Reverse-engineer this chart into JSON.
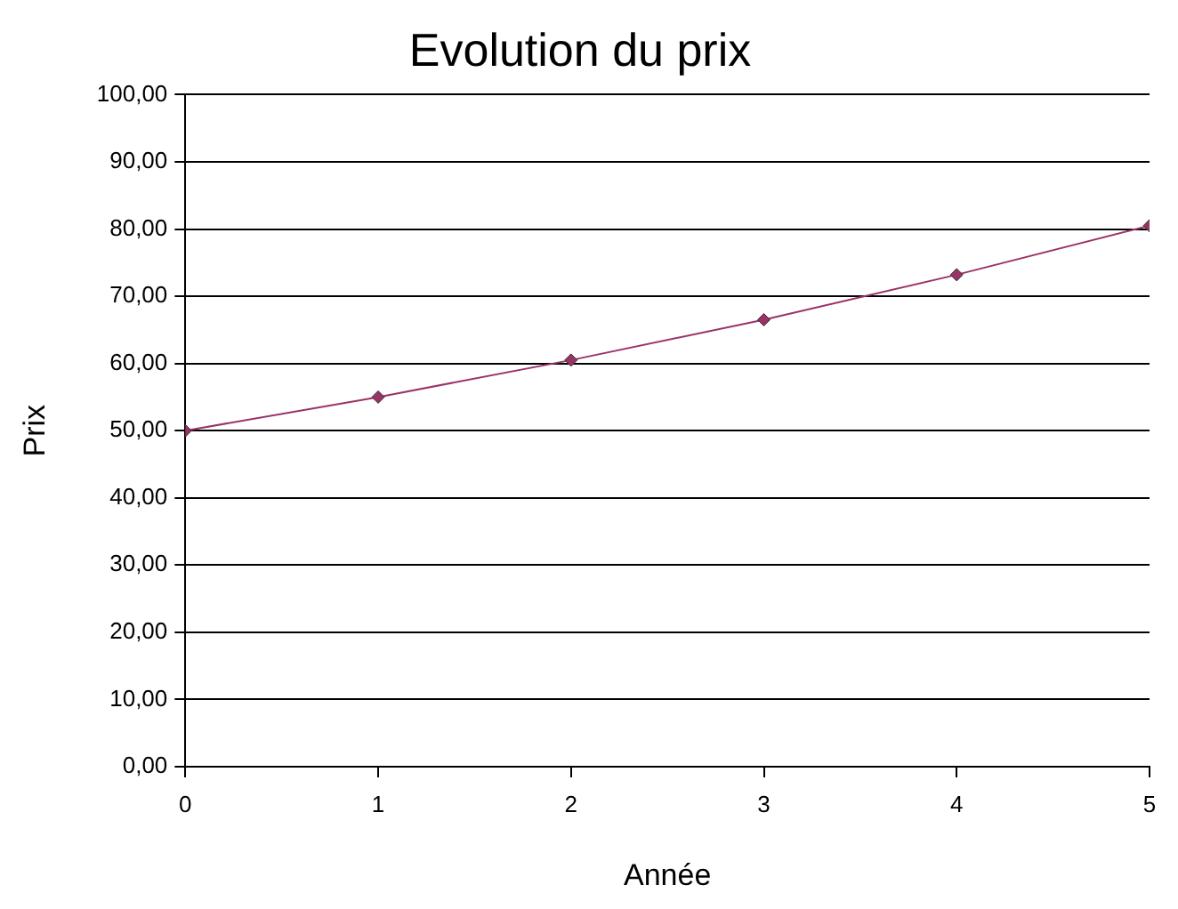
{
  "chart_data": {
    "type": "line",
    "title": "Evolution du prix",
    "xlabel": "Année",
    "ylabel": "Prix",
    "x": [
      0,
      1,
      2,
      3,
      4,
      5
    ],
    "series": [
      {
        "color": "#993366",
        "values": [
          50,
          55,
          60.5,
          66.5,
          73.2,
          80.5
        ]
      }
    ],
    "xlim": [
      0,
      5
    ],
    "xticks": [
      0,
      1,
      2,
      3,
      4,
      5
    ],
    "ylim": [
      0,
      100
    ],
    "yticks": [
      {
        "value": 0,
        "label": "0,00"
      },
      {
        "value": 10,
        "label": "10,00"
      },
      {
        "value": 20,
        "label": "20,00"
      },
      {
        "value": 30,
        "label": "30,00"
      },
      {
        "value": 40,
        "label": "40,00"
      },
      {
        "value": 50,
        "label": "50,00"
      },
      {
        "value": 60,
        "label": "60,00"
      },
      {
        "value": 70,
        "label": "70,00"
      },
      {
        "value": 80,
        "label": "80,00"
      },
      {
        "value": 90,
        "label": "90,00"
      },
      {
        "value": 100,
        "label": "100,00"
      }
    ],
    "grid": "y",
    "legend": false,
    "marker": "diamond",
    "line_style": "solid"
  }
}
